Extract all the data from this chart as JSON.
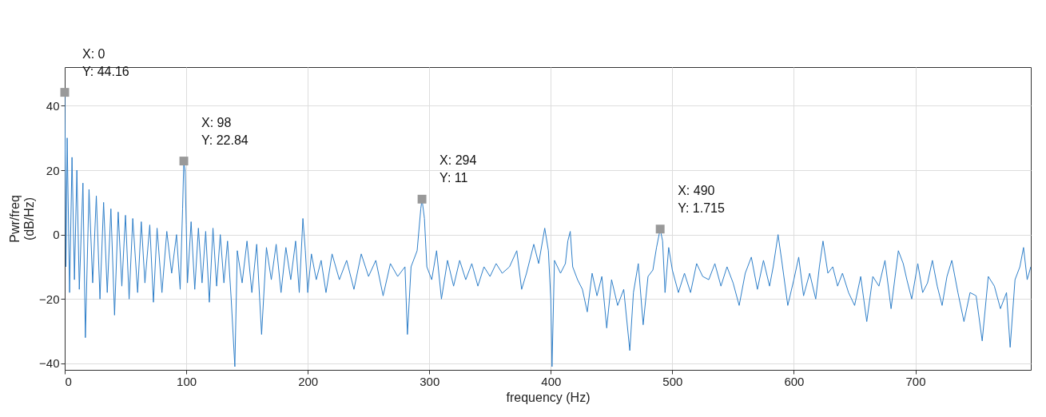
{
  "chart_data": {
    "type": "line",
    "xlabel": "frequency (Hz)",
    "ylabel": "Pwr/freq (dB/Hz)",
    "xlim": [
      0,
      795
    ],
    "xticks": [
      0,
      100,
      200,
      300,
      400,
      500,
      600,
      700
    ],
    "ylim": [
      -42,
      52
    ],
    "yticks": [
      -40,
      -20,
      0,
      20,
      40
    ],
    "grid": true,
    "series": [
      {
        "color": "#2f7fc9",
        "x": [
          0,
          1,
          2,
          4,
          6,
          8,
          10,
          12,
          15,
          17,
          20,
          23,
          26,
          29,
          32,
          35,
          38,
          41,
          44,
          47,
          50,
          53,
          56,
          60,
          63,
          66,
          70,
          73,
          76,
          80,
          84,
          88,
          92,
          95,
          97,
          98,
          99,
          100,
          101,
          104,
          107,
          110,
          113,
          116,
          119,
          122,
          125,
          128,
          131,
          134,
          137,
          140,
          142,
          146,
          150,
          154,
          158,
          162,
          166,
          170,
          174,
          178,
          182,
          186,
          190,
          193,
          196,
          198,
          200,
          203,
          207,
          211,
          215,
          220,
          226,
          232,
          238,
          244,
          250,
          256,
          262,
          268,
          274,
          280,
          282,
          285,
          290,
          293,
          294,
          296,
          298,
          302,
          306,
          310,
          315,
          320,
          325,
          330,
          335,
          340,
          345,
          350,
          355,
          360,
          366,
          372,
          376,
          380,
          386,
          390,
          395,
          398,
          400,
          401,
          403,
          408,
          412,
          414,
          416,
          418,
          422,
          426,
          430,
          434,
          438,
          442,
          446,
          450,
          455,
          460,
          465,
          468,
          472,
          476,
          480,
          484,
          487,
          490,
          492,
          494,
          497,
          500,
          505,
          510,
          515,
          520,
          525,
          530,
          535,
          540,
          545,
          550,
          555,
          560,
          565,
          570,
          575,
          580,
          583,
          587,
          590,
          595,
          600,
          604,
          608,
          613,
          618,
          621,
          624,
          628,
          632,
          636,
          640,
          645,
          650,
          655,
          660,
          665,
          670,
          675,
          680,
          686,
          690,
          693,
          697,
          702,
          706,
          710,
          714,
          718,
          722,
          726,
          730,
          735,
          740,
          745,
          750,
          755,
          760,
          765,
          770,
          775,
          778,
          782,
          786,
          789,
          792,
          795
        ],
        "values": [
          44.16,
          -10,
          30,
          -18,
          24,
          -14,
          20,
          -17,
          16,
          -32,
          14,
          -15,
          12,
          -20,
          10,
          -18,
          8,
          -25,
          7,
          -16,
          6,
          -20,
          5,
          -18,
          4,
          -15,
          3,
          -21,
          2,
          -18,
          1,
          -12,
          0,
          -17,
          8,
          22.84,
          20,
          3,
          -15,
          4,
          -17,
          2,
          -15,
          1,
          -21,
          2,
          -16,
          0,
          -15,
          -2,
          -20,
          -41,
          -5,
          -15,
          -2,
          -18,
          -3,
          -31,
          -4,
          -14,
          -3,
          -18,
          -4,
          -14,
          -2,
          -18,
          5,
          -5,
          -18,
          -6,
          -14,
          -8,
          -18,
          -6,
          -14,
          -8,
          -17,
          -6,
          -13,
          -8,
          -19,
          -9,
          -13,
          -10,
          -31,
          -10,
          -5,
          8,
          11,
          5,
          -10,
          -14,
          -5,
          -20,
          -8,
          -16,
          -8,
          -14,
          -9,
          -16,
          -10,
          -13,
          -9,
          -12,
          -10,
          -5,
          -17,
          -12,
          -3,
          -9,
          2,
          -5,
          -20,
          -41,
          -8,
          -12,
          -9,
          -2,
          1,
          -10,
          -14,
          -17,
          -24,
          -12,
          -19,
          -13,
          -29,
          -14,
          -22,
          -17,
          -36,
          -18,
          -9,
          -28,
          -13,
          -11,
          -4,
          1.715,
          -2,
          -18,
          -4,
          -11,
          -18,
          -12,
          -18,
          -9,
          -13,
          -14,
          -9,
          -16,
          -10,
          -15,
          -22,
          -12,
          -7,
          -17,
          -8,
          -16,
          -10,
          0,
          -8,
          -22,
          -14,
          -7,
          -19,
          -12,
          -20,
          -10,
          -2,
          -12,
          -10,
          -16,
          -12,
          -18,
          -22,
          -13,
          -27,
          -13,
          -16,
          -8,
          -23,
          -5,
          -9,
          -14,
          -20,
          -9,
          -18,
          -15,
          -8,
          -16,
          -22,
          -13,
          -8,
          -18,
          -27,
          -18,
          -19,
          -33,
          -13,
          -16,
          -23,
          -18,
          -35,
          -14,
          -10,
          -4,
          -14,
          -10
        ]
      }
    ],
    "annotations": [
      {
        "text": "X: 0\nY: 44.16",
        "x": 0,
        "y": 44.16
      },
      {
        "text": "X: 98\nY: 22.84",
        "x": 98,
        "y": 22.84
      },
      {
        "text": "X: 294\nY: 11",
        "x": 294,
        "y": 11
      },
      {
        "text": "X: 490\nY: 1.715",
        "x": 490,
        "y": 1.715
      }
    ]
  }
}
